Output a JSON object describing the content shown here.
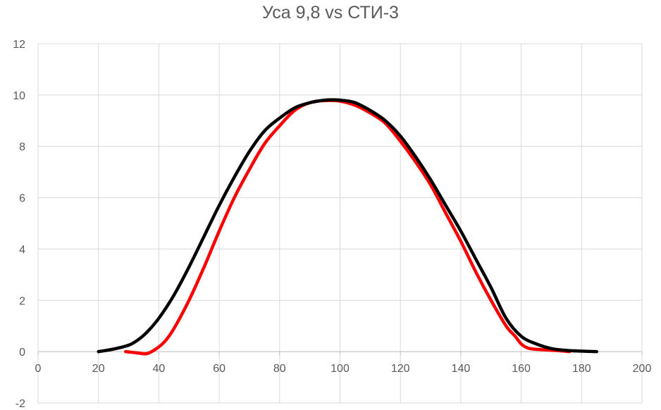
{
  "chart_data": {
    "type": "line",
    "title": "Уса 9,8 vs СТИ-3",
    "xlabel": "",
    "ylabel": "",
    "xlim": [
      0,
      200
    ],
    "ylim": [
      -2,
      12
    ],
    "xticks": [
      0,
      20,
      40,
      60,
      80,
      100,
      120,
      140,
      160,
      180,
      200
    ],
    "yticks": [
      -2,
      0,
      2,
      4,
      6,
      8,
      10,
      12
    ],
    "grid": true,
    "legend": "none",
    "series": [
      {
        "color": "#ff0000",
        "x": [
          29,
          33,
          36,
          39,
          42,
          45,
          50,
          55,
          60,
          65,
          70,
          75,
          80,
          85,
          90,
          95,
          100,
          105,
          110,
          115,
          120,
          125,
          130,
          135,
          140,
          145,
          150,
          155,
          158,
          160,
          162,
          164,
          168,
          172,
          176
        ],
        "y": [
          0.0,
          -0.05,
          -0.08,
          0.1,
          0.4,
          0.9,
          2.0,
          3.3,
          4.7,
          6.0,
          7.1,
          8.1,
          8.8,
          9.4,
          9.7,
          9.78,
          9.76,
          9.6,
          9.3,
          8.9,
          8.2,
          7.4,
          6.5,
          5.4,
          4.3,
          3.1,
          2.0,
          1.0,
          0.6,
          0.3,
          0.15,
          0.1,
          0.07,
          0.04,
          0.0
        ]
      },
      {
        "color": "#000000",
        "x": [
          20,
          25,
          30,
          33,
          36,
          40,
          45,
          50,
          55,
          60,
          65,
          70,
          75,
          80,
          85,
          90,
          95,
          100,
          105,
          110,
          115,
          120,
          125,
          130,
          135,
          140,
          145,
          150,
          155,
          160,
          165,
          170,
          175,
          180,
          185
        ],
        "y": [
          0.0,
          0.1,
          0.25,
          0.45,
          0.75,
          1.3,
          2.2,
          3.3,
          4.5,
          5.7,
          6.8,
          7.8,
          8.6,
          9.1,
          9.5,
          9.7,
          9.8,
          9.8,
          9.7,
          9.4,
          9.0,
          8.4,
          7.6,
          6.7,
          5.7,
          4.7,
          3.6,
          2.5,
          1.3,
          0.6,
          0.3,
          0.12,
          0.05,
          0.02,
          0.0
        ]
      }
    ]
  }
}
